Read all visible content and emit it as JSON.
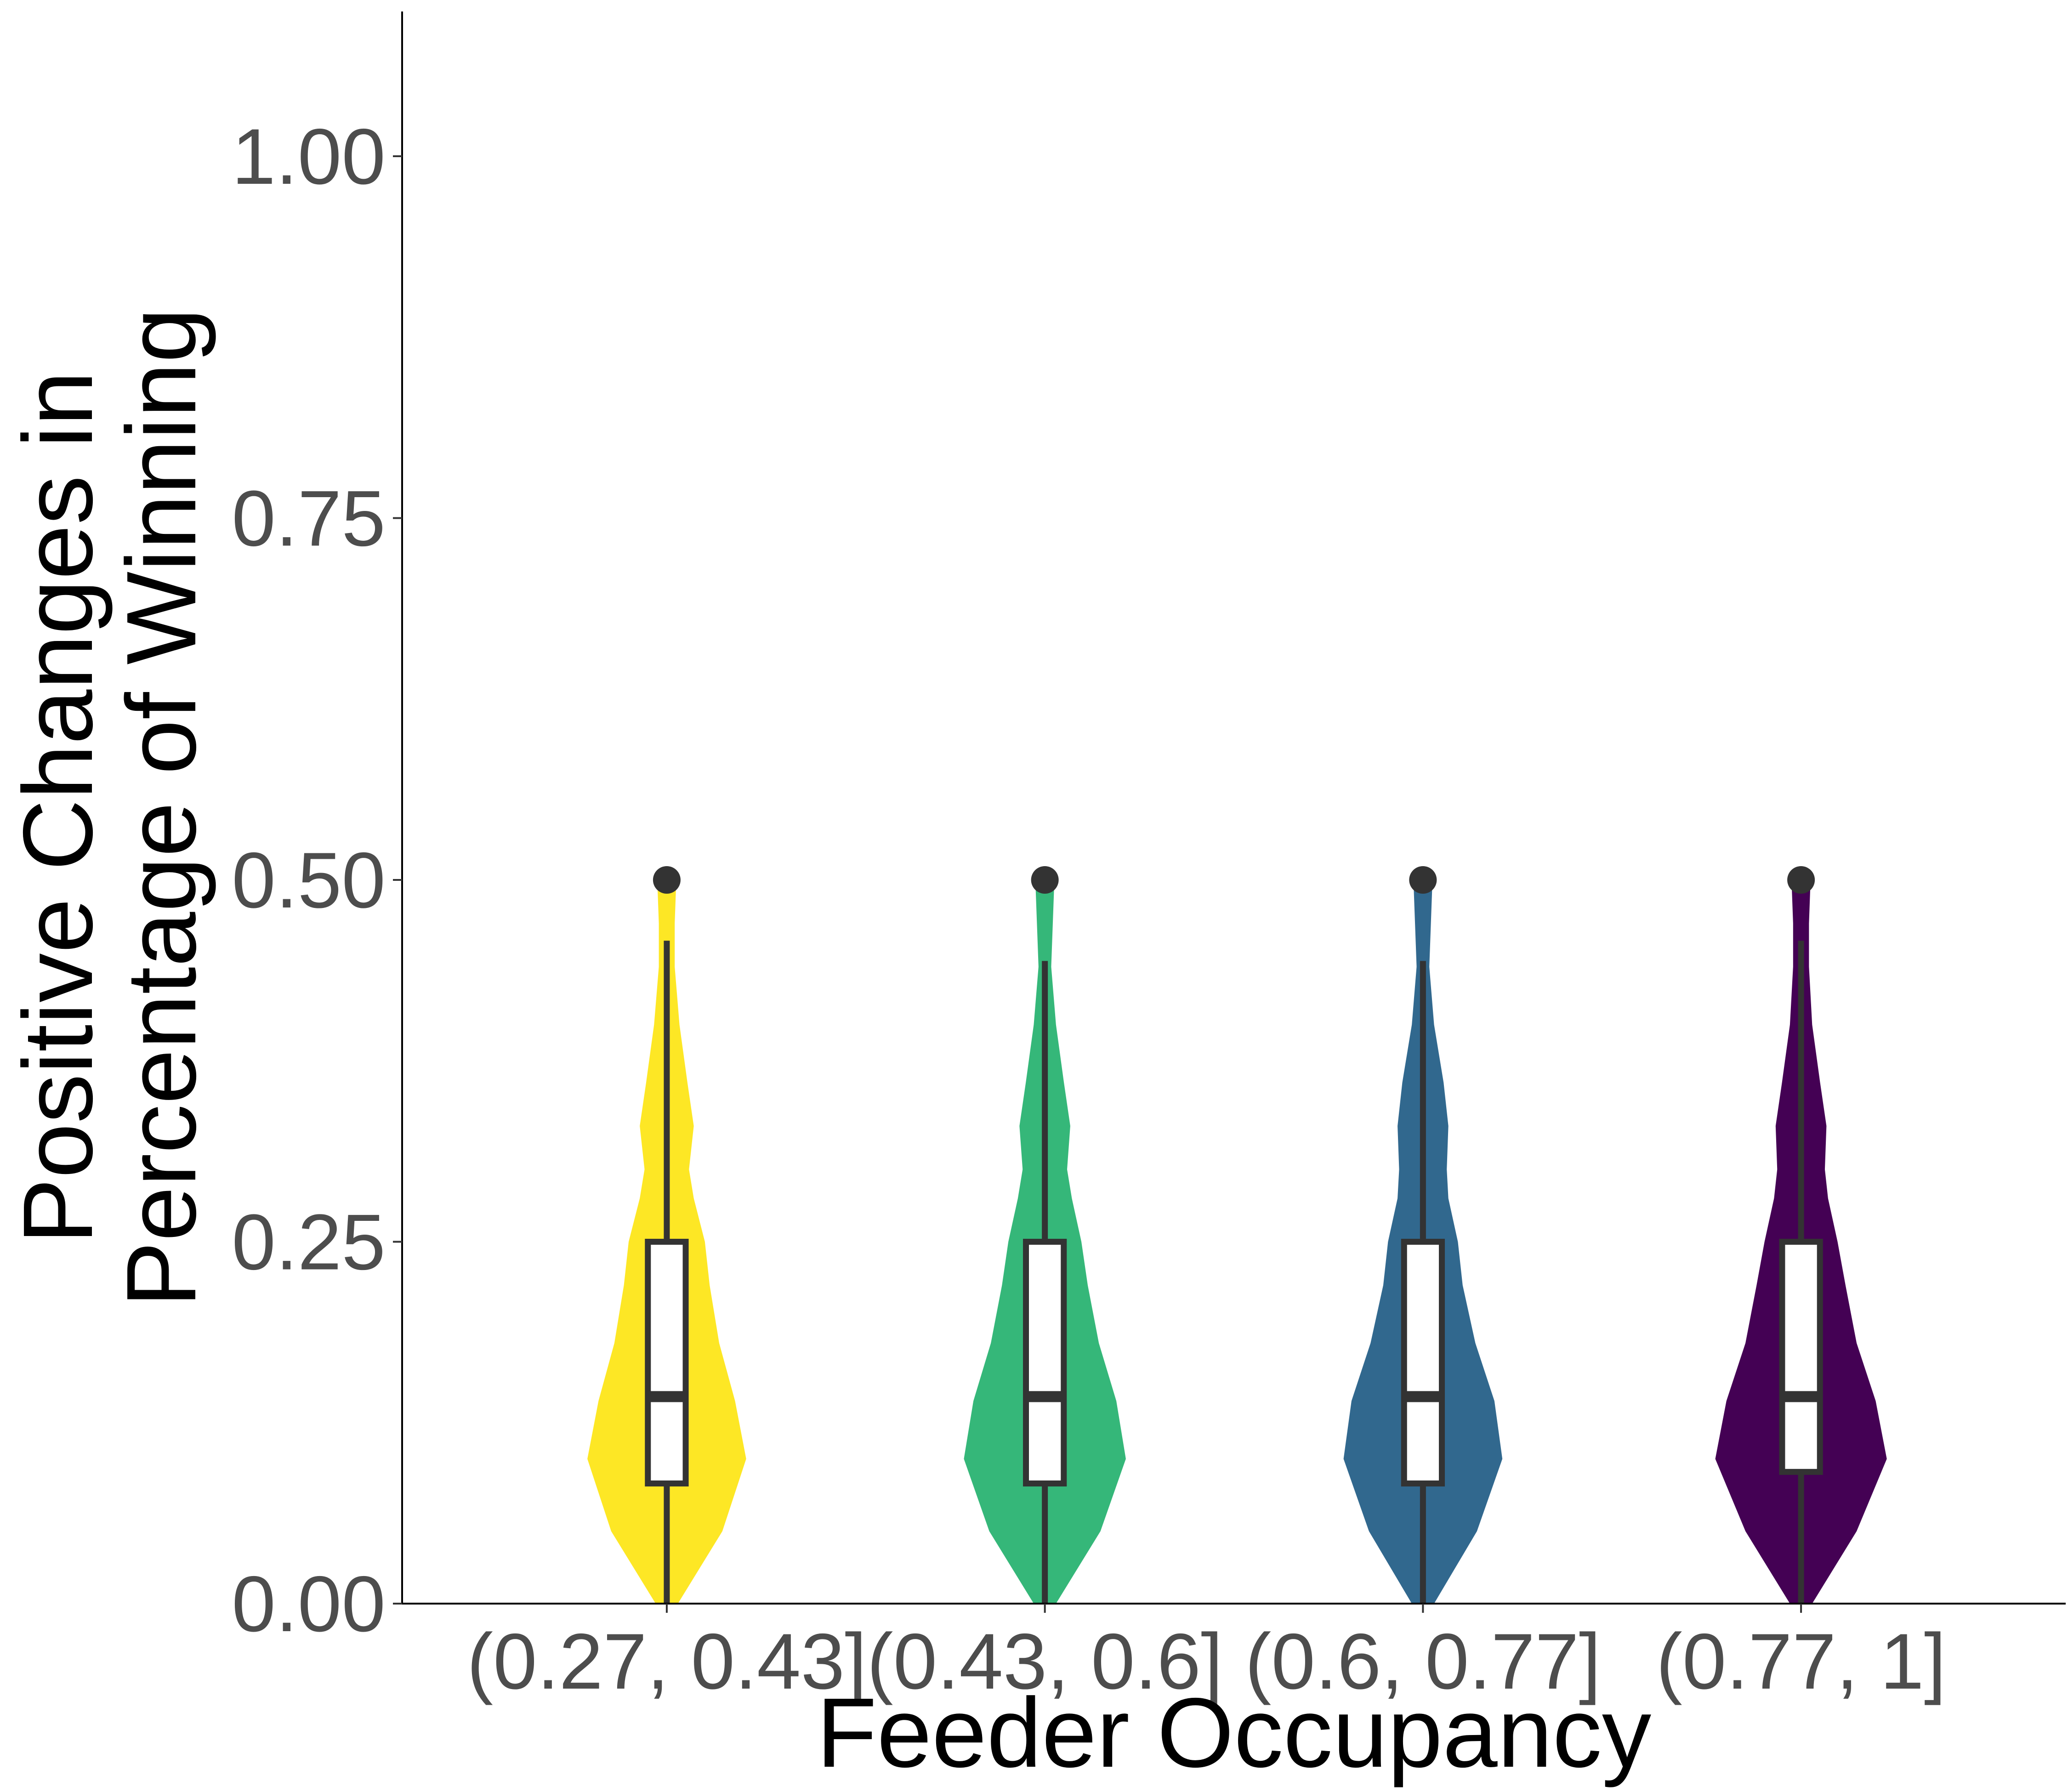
{
  "chart_data": {
    "type": "violin",
    "title": "",
    "xlabel": "Feeder Occupancy",
    "ylabel_lines": [
      "Positive Changes in",
      "Percentage of Winning"
    ],
    "ylim": [
      0,
      1.1
    ],
    "yticks": [
      0,
      0.25,
      0.5,
      0.75,
      1.0
    ],
    "ytick_labels": [
      "0.00",
      "0.25",
      "0.50",
      "0.75",
      "1.00"
    ],
    "categories": [
      "(0.27, 0.43]",
      "(0.43, 0.6]",
      "(0.6, 0.77]",
      "(0.77, 1]"
    ],
    "grid": false,
    "legend": "none",
    "groups": [
      {
        "category": "(0.27, 0.43]",
        "color": "#fde725",
        "box": {
          "q1": 0.083,
          "median": 0.143,
          "q3": 0.25,
          "whisker_low": 0.0,
          "whisker_high": 0.458
        },
        "outliers": [
          0.5
        ],
        "density": [
          [
            0.0,
            0.07
          ],
          [
            0.05,
            0.35
          ],
          [
            0.1,
            0.5
          ],
          [
            0.14,
            0.43
          ],
          [
            0.18,
            0.33
          ],
          [
            0.22,
            0.27
          ],
          [
            0.25,
            0.24
          ],
          [
            0.28,
            0.17
          ],
          [
            0.3,
            0.14
          ],
          [
            0.33,
            0.17
          ],
          [
            0.36,
            0.13
          ],
          [
            0.4,
            0.08
          ],
          [
            0.44,
            0.05
          ],
          [
            0.47,
            0.05
          ],
          [
            0.5,
            0.06
          ]
        ]
      },
      {
        "category": "(0.43, 0.6]",
        "color": "#35b779",
        "box": {
          "q1": 0.083,
          "median": 0.143,
          "q3": 0.25,
          "whisker_low": 0.0,
          "whisker_high": 0.444
        },
        "outliers": [
          0.5
        ],
        "density": [
          [
            0.0,
            0.07
          ],
          [
            0.05,
            0.35
          ],
          [
            0.1,
            0.51
          ],
          [
            0.14,
            0.45
          ],
          [
            0.18,
            0.34
          ],
          [
            0.22,
            0.27
          ],
          [
            0.25,
            0.23
          ],
          [
            0.28,
            0.17
          ],
          [
            0.3,
            0.14
          ],
          [
            0.33,
            0.16
          ],
          [
            0.36,
            0.12
          ],
          [
            0.4,
            0.07
          ],
          [
            0.44,
            0.04
          ],
          [
            0.47,
            0.05
          ],
          [
            0.5,
            0.06
          ]
        ]
      },
      {
        "category": "(0.6, 0.77]",
        "color": "#31688e",
        "box": {
          "q1": 0.083,
          "median": 0.143,
          "q3": 0.25,
          "whisker_low": 0.0,
          "whisker_high": 0.444
        },
        "outliers": [
          0.5
        ],
        "density": [
          [
            0.0,
            0.07
          ],
          [
            0.05,
            0.34
          ],
          [
            0.1,
            0.5
          ],
          [
            0.14,
            0.45
          ],
          [
            0.18,
            0.33
          ],
          [
            0.22,
            0.25
          ],
          [
            0.25,
            0.22
          ],
          [
            0.28,
            0.16
          ],
          [
            0.3,
            0.15
          ],
          [
            0.33,
            0.16
          ],
          [
            0.36,
            0.13
          ],
          [
            0.4,
            0.07
          ],
          [
            0.44,
            0.04
          ],
          [
            0.47,
            0.05
          ],
          [
            0.5,
            0.06
          ]
        ]
      },
      {
        "category": "(0.77, 1]",
        "color": "#440154",
        "box": {
          "q1": 0.091,
          "median": 0.143,
          "q3": 0.25,
          "whisker_low": 0.0,
          "whisker_high": 0.458
        },
        "outliers": [
          0.5
        ],
        "density": [
          [
            0.0,
            0.07
          ],
          [
            0.05,
            0.35
          ],
          [
            0.1,
            0.54
          ],
          [
            0.14,
            0.47
          ],
          [
            0.18,
            0.35
          ],
          [
            0.22,
            0.28
          ],
          [
            0.25,
            0.23
          ],
          [
            0.28,
            0.17
          ],
          [
            0.3,
            0.15
          ],
          [
            0.33,
            0.16
          ],
          [
            0.36,
            0.12
          ],
          [
            0.4,
            0.07
          ],
          [
            0.44,
            0.05
          ],
          [
            0.47,
            0.05
          ],
          [
            0.5,
            0.06
          ]
        ]
      }
    ]
  }
}
